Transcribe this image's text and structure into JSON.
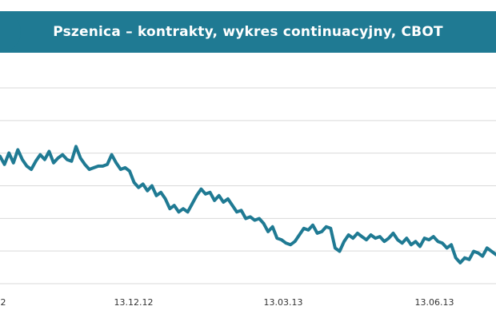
{
  "chart_data": {
    "type": "line",
    "title": "Pszenica – kontrakty, wykres continuacyjny, CBOT",
    "xlabel": "",
    "ylabel": "",
    "grid": true,
    "legend": "none",
    "colors": {
      "line": "#1f7a93",
      "title_bar": "#1f7a93",
      "grid": "#d9d9d9"
    },
    "x_tick_labels": [
      "2",
      "13.12.12",
      "13.03.13",
      "13.06.13"
    ],
    "series": [
      {
        "values": [
          0.68,
          0.63,
          0.7,
          0.64,
          0.72,
          0.66,
          0.62,
          0.6,
          0.65,
          0.69,
          0.66,
          0.71,
          0.64,
          0.67,
          0.69,
          0.66,
          0.65,
          0.74,
          0.67,
          0.63,
          0.6,
          0.61,
          0.62,
          0.62,
          0.63,
          0.69,
          0.64,
          0.6,
          0.61,
          0.59,
          0.52,
          0.49,
          0.51,
          0.47,
          0.5,
          0.44,
          0.46,
          0.42,
          0.36,
          0.38,
          0.34,
          0.36,
          0.34,
          0.39,
          0.44,
          0.48,
          0.45,
          0.46,
          0.41,
          0.44,
          0.4,
          0.42,
          0.38,
          0.34,
          0.35,
          0.3,
          0.31,
          0.29,
          0.3,
          0.27,
          0.22,
          0.25,
          0.18,
          0.17,
          0.15,
          0.14,
          0.16,
          0.2,
          0.24,
          0.23,
          0.26,
          0.21,
          0.22,
          0.25,
          0.24,
          0.12,
          0.1,
          0.16,
          0.2,
          0.18,
          0.21,
          0.19,
          0.17,
          0.2,
          0.18,
          0.19,
          0.16,
          0.18,
          0.21,
          0.17,
          0.15,
          0.18,
          0.14,
          0.16,
          0.13,
          0.18,
          0.17,
          0.19,
          0.16,
          0.15,
          0.12,
          0.14,
          0.06,
          0.03,
          0.06,
          0.05,
          0.1,
          0.09,
          0.07,
          0.12,
          0.1,
          0.08
        ]
      }
    ]
  }
}
